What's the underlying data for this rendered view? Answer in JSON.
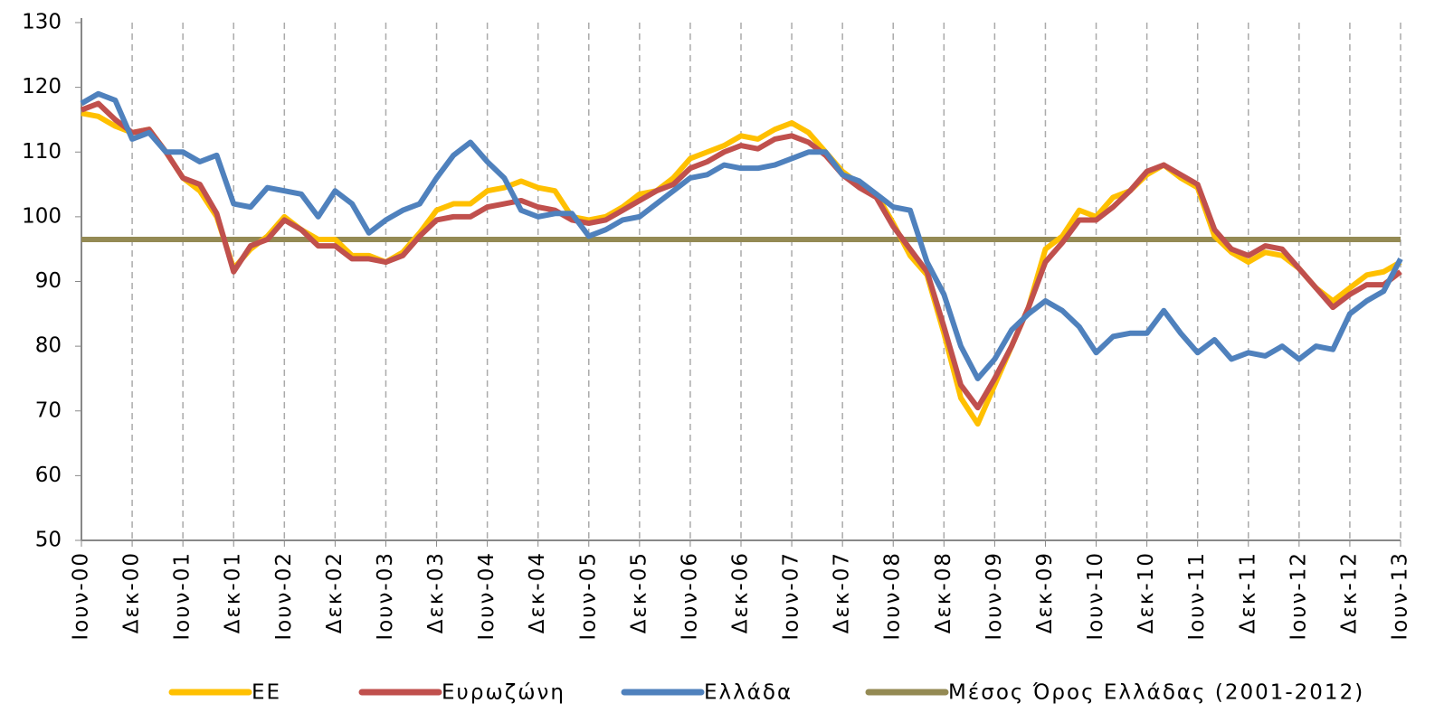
{
  "chart_data": {
    "type": "line",
    "categories": [
      "Ιουν-00",
      null,
      null,
      "Δεκ-00",
      null,
      null,
      "Ιουν-01",
      null,
      null,
      "Δεκ-01",
      null,
      null,
      "Ιουν-02",
      null,
      null,
      "Δεκ-02",
      null,
      null,
      "Ιουν-03",
      null,
      null,
      "Δεκ-03",
      null,
      null,
      "Ιουν-04",
      null,
      null,
      "Δεκ-04",
      null,
      null,
      "Ιουν-05",
      null,
      null,
      "Δεκ-05",
      null,
      null,
      "Ιουν-06",
      null,
      null,
      "Δεκ-06",
      null,
      null,
      "Ιουν-07",
      null,
      null,
      "Δεκ-07",
      null,
      null,
      "Ιουν-08",
      null,
      null,
      "Δεκ-08",
      null,
      null,
      "Ιουν-09",
      null,
      null,
      "Δεκ-09",
      null,
      null,
      "Ιουν-10",
      null,
      null,
      "Δεκ-10",
      null,
      null,
      "Ιουν-11",
      null,
      null,
      "Δεκ-11",
      null,
      null,
      "Ιουν-12",
      null,
      null,
      "Δεκ-12",
      null,
      null,
      "Ιουν-13"
    ],
    "series": [
      {
        "name": "ΕΕ",
        "color": "#ffc000",
        "values": [
          116,
          115.5,
          114,
          113,
          113.5,
          110,
          106,
          104,
          100,
          92,
          95,
          97,
          100,
          98,
          96.5,
          96.5,
          94,
          94,
          93,
          94.5,
          97.5,
          101,
          102,
          102,
          104,
          104.5,
          105.5,
          104.5,
          104,
          100,
          99.5,
          100,
          101.5,
          103.5,
          104,
          106,
          109,
          110,
          111,
          112.5,
          112,
          113.5,
          114.5,
          113,
          110,
          107,
          105,
          103.5,
          99,
          94,
          91,
          82,
          72,
          68,
          74,
          80,
          86,
          95,
          97,
          101,
          100,
          103,
          104,
          106.5,
          108,
          106,
          104.5,
          97,
          94.5,
          93,
          94.5,
          94,
          92,
          89,
          87,
          89,
          91,
          91.5,
          93
        ]
      },
      {
        "name": "Ευρωζώνη",
        "color": "#c0504d",
        "values": [
          116.5,
          117.5,
          115,
          113,
          113.5,
          110,
          106,
          105,
          100.5,
          91.5,
          95.5,
          96.5,
          99.5,
          98,
          95.5,
          95.5,
          93.5,
          93.5,
          93,
          94,
          97,
          99.5,
          100,
          100,
          101.5,
          102,
          102.5,
          101.5,
          101,
          99.5,
          99,
          99.5,
          101,
          102.5,
          104,
          105,
          107.5,
          108.5,
          110,
          111,
          110.5,
          112,
          112.5,
          111.5,
          109.5,
          106.5,
          104.5,
          103,
          98.5,
          95,
          91.5,
          83,
          74,
          70.5,
          75,
          80,
          86,
          93,
          96,
          99.5,
          99.5,
          101.5,
          104,
          107,
          108,
          106.5,
          105,
          98,
          95,
          94,
          95.5,
          95,
          92,
          89,
          86,
          88,
          89.5,
          89.5,
          91.5
        ]
      },
      {
        "name": "Ελλάδα",
        "color": "#4f81bd",
        "values": [
          117.5,
          119,
          118,
          112,
          113,
          110,
          110,
          108.5,
          109.5,
          102,
          101.5,
          104.5,
          104,
          103.5,
          100,
          104,
          102,
          97.5,
          99.5,
          101,
          102,
          106,
          109.5,
          111.5,
          108.5,
          106,
          101,
          100,
          100.5,
          100.5,
          97,
          98,
          99.5,
          100,
          102,
          104,
          106,
          106.5,
          108,
          107.5,
          107.5,
          108,
          109,
          110,
          110,
          106.5,
          105.5,
          103.5,
          101.5,
          101,
          93,
          88,
          80,
          75,
          78,
          82.5,
          85,
          87,
          85.5,
          83,
          79,
          81.5,
          82,
          82,
          85.5,
          82,
          79,
          81,
          78,
          79,
          78.5,
          80,
          78,
          80,
          79.5,
          85,
          87,
          88.5,
          93.5
        ]
      },
      {
        "name": "Μέσος Όρος Ελλάδας (2001-2012)",
        "color": "#948a54",
        "values": [
          96.5,
          96.5,
          96.5,
          96.5,
          96.5,
          96.5,
          96.5,
          96.5,
          96.5,
          96.5,
          96.5,
          96.5,
          96.5,
          96.5,
          96.5,
          96.5,
          96.5,
          96.5,
          96.5,
          96.5,
          96.5,
          96.5,
          96.5,
          96.5,
          96.5,
          96.5,
          96.5,
          96.5,
          96.5,
          96.5,
          96.5,
          96.5,
          96.5,
          96.5,
          96.5,
          96.5,
          96.5,
          96.5,
          96.5,
          96.5,
          96.5,
          96.5,
          96.5,
          96.5,
          96.5,
          96.5,
          96.5,
          96.5,
          96.5,
          96.5,
          96.5,
          96.5,
          96.5,
          96.5,
          96.5,
          96.5,
          96.5,
          96.5,
          96.5,
          96.5,
          96.5,
          96.5,
          96.5,
          96.5,
          96.5,
          96.5,
          96.5,
          96.5,
          96.5,
          96.5,
          96.5,
          96.5,
          96.5,
          96.5,
          96.5,
          96.5,
          96.5,
          96.5,
          96.5
        ]
      }
    ],
    "ylim": [
      50,
      130
    ],
    "yticks": [
      50,
      60,
      70,
      80,
      90,
      100,
      110,
      120,
      130
    ],
    "grid": "x-dashed"
  }
}
